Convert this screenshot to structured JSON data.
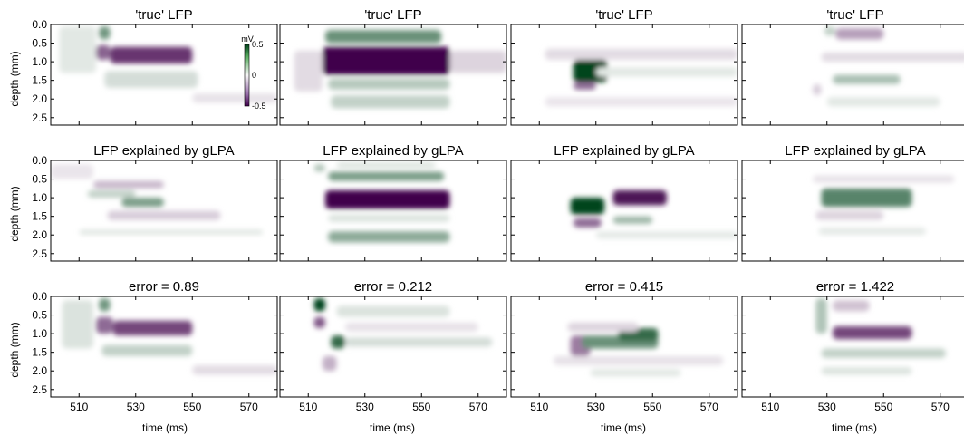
{
  "colors": {
    "positive": "#00441b",
    "negative": "#40004b",
    "neutral": "#f7f7f7",
    "frame": "#000000"
  },
  "chart_data": {
    "type": "heatmap",
    "layout": {
      "rows": 3,
      "cols": 4
    },
    "xlabel": "time (ms)",
    "ylabel": "depth (mm)",
    "xlim": [
      500,
      580
    ],
    "ylim": [
      2.7,
      0.0
    ],
    "xticks": [
      510,
      530,
      550,
      570
    ],
    "yticks": [
      0.0,
      0.5,
      1.0,
      1.5,
      2.0,
      2.5
    ],
    "xtick_labels": [
      "510",
      "530",
      "550",
      "570"
    ],
    "ytick_labels": [
      "0.0",
      "0.5",
      "1.0",
      "1.5",
      "2.0",
      "2.5"
    ],
    "colormap": "PRGn",
    "colorbar": {
      "label": "mV",
      "min": -0.5,
      "max": 0.5,
      "ticks": [
        "0.5",
        "0",
        "-0.5"
      ]
    },
    "row_titles": [
      [
        "'true' LFP",
        "'true' LFP",
        "'true' LFP",
        "'true' LFP"
      ],
      [
        "LFP explained by gLPA",
        "LFP explained by gLPA",
        "LFP explained by gLPA",
        "LFP explained by gLPA"
      ],
      [
        "error = 0.89",
        "error = 0.212",
        "error = 0.415",
        "error = 1.422"
      ]
    ],
    "errors": [
      0.89,
      0.212,
      0.415,
      1.422
    ],
    "panels": [
      [
        [
          {
            "t0": 517,
            "t1": 521,
            "d0": 0.05,
            "d1": 0.4,
            "v": 0.38
          },
          {
            "t0": 516,
            "t1": 521,
            "d0": 0.55,
            "d1": 0.95,
            "v": -0.42
          },
          {
            "t0": 521,
            "t1": 550,
            "d0": 0.6,
            "d1": 1.05,
            "v": -0.55
          },
          {
            "t0": 519,
            "t1": 552,
            "d0": 1.25,
            "d1": 1.7,
            "v": 0.1
          },
          {
            "t0": 503,
            "t1": 516,
            "d0": 0.05,
            "d1": 1.3,
            "v": 0.06
          },
          {
            "t0": 550,
            "t1": 580,
            "d0": 1.85,
            "d1": 2.1,
            "v": -0.06
          }
        ],
        [
          {
            "t0": 516,
            "t1": 557,
            "d0": 0.15,
            "d1": 0.5,
            "v": 0.4
          },
          {
            "t0": 515,
            "t1": 560,
            "d0": 0.6,
            "d1": 1.35,
            "v": -0.75
          },
          {
            "t0": 517,
            "t1": 560,
            "d0": 1.45,
            "d1": 1.75,
            "v": 0.18
          },
          {
            "t0": 518,
            "t1": 560,
            "d0": 1.9,
            "d1": 2.25,
            "v": 0.15
          },
          {
            "t0": 505,
            "t1": 515,
            "d0": 0.7,
            "d1": 1.8,
            "v": -0.08
          },
          {
            "t0": 560,
            "t1": 580,
            "d0": 0.7,
            "d1": 1.3,
            "v": -0.1
          }
        ],
        [
          {
            "t0": 522,
            "t1": 534,
            "d0": 0.95,
            "d1": 1.55,
            "v": 0.85
          },
          {
            "t0": 522,
            "t1": 530,
            "d0": 1.55,
            "d1": 1.75,
            "v": -0.4
          },
          {
            "t0": 512,
            "t1": 580,
            "d0": 0.65,
            "d1": 0.95,
            "v": -0.08
          },
          {
            "t0": 530,
            "t1": 580,
            "d0": 1.15,
            "d1": 1.4,
            "v": 0.06
          },
          {
            "t0": 512,
            "t1": 580,
            "d0": 1.95,
            "d1": 2.2,
            "v": -0.05
          }
        ],
        [
          {
            "t0": 533,
            "t1": 550,
            "d0": 0.1,
            "d1": 0.4,
            "v": -0.25
          },
          {
            "t0": 529,
            "t1": 533,
            "d0": 0.05,
            "d1": 0.3,
            "v": 0.15
          },
          {
            "t0": 532,
            "t1": 556,
            "d0": 1.35,
            "d1": 1.6,
            "v": 0.22
          },
          {
            "t0": 528,
            "t1": 580,
            "d0": 0.75,
            "d1": 1.0,
            "v": -0.08
          },
          {
            "t0": 525,
            "t1": 528,
            "d0": 1.6,
            "d1": 1.9,
            "v": -0.12
          },
          {
            "t0": 530,
            "t1": 570,
            "d0": 1.95,
            "d1": 2.2,
            "v": 0.06
          }
        ]
      ],
      [
        [
          {
            "t0": 515,
            "t1": 540,
            "d0": 0.55,
            "d1": 0.75,
            "v": -0.18
          },
          {
            "t0": 525,
            "t1": 540,
            "d0": 1.0,
            "d1": 1.25,
            "v": 0.35
          },
          {
            "t0": 513,
            "t1": 530,
            "d0": 0.8,
            "d1": 1.0,
            "v": 0.15
          },
          {
            "t0": 520,
            "t1": 560,
            "d0": 1.35,
            "d1": 1.6,
            "v": -0.12
          },
          {
            "t0": 510,
            "t1": 575,
            "d0": 1.85,
            "d1": 2.0,
            "v": 0.06
          },
          {
            "t0": 500,
            "t1": 515,
            "d0": 0.1,
            "d1": 0.5,
            "v": -0.05
          }
        ],
        [
          {
            "t0": 517,
            "t1": 558,
            "d0": 0.3,
            "d1": 0.55,
            "v": 0.35
          },
          {
            "t0": 516,
            "t1": 560,
            "d0": 0.8,
            "d1": 1.3,
            "v": -0.75
          },
          {
            "t0": 517,
            "t1": 560,
            "d0": 1.9,
            "d1": 2.2,
            "v": 0.3
          },
          {
            "t0": 517,
            "t1": 560,
            "d0": 1.45,
            "d1": 1.65,
            "v": 0.08
          },
          {
            "t0": 512,
            "t1": 516,
            "d0": 0.1,
            "d1": 0.3,
            "v": 0.2
          },
          {
            "t0": 520,
            "t1": 555,
            "d0": 0.05,
            "d1": 0.2,
            "v": 0.08
          }
        ],
        [
          {
            "t0": 521,
            "t1": 533,
            "d0": 1.0,
            "d1": 1.45,
            "v": 0.85
          },
          {
            "t0": 522,
            "t1": 532,
            "d0": 1.55,
            "d1": 1.8,
            "v": -0.4
          },
          {
            "t0": 536,
            "t1": 555,
            "d0": 0.8,
            "d1": 1.2,
            "v": -0.65
          },
          {
            "t0": 536,
            "t1": 550,
            "d0": 1.5,
            "d1": 1.7,
            "v": 0.25
          },
          {
            "t0": 530,
            "t1": 580,
            "d0": 1.9,
            "d1": 2.1,
            "v": 0.05
          }
        ],
        [
          {
            "t0": 528,
            "t1": 560,
            "d0": 0.75,
            "d1": 1.25,
            "v": 0.45
          },
          {
            "t0": 526,
            "t1": 550,
            "d0": 1.35,
            "d1": 1.6,
            "v": -0.1
          },
          {
            "t0": 525,
            "t1": 575,
            "d0": 0.4,
            "d1": 0.6,
            "v": -0.06
          },
          {
            "t0": 527,
            "t1": 565,
            "d0": 1.8,
            "d1": 2.0,
            "v": 0.05
          }
        ]
      ],
      [
        [
          {
            "t0": 517,
            "t1": 521,
            "d0": 0.05,
            "d1": 0.4,
            "v": 0.38
          },
          {
            "t0": 516,
            "t1": 522,
            "d0": 0.55,
            "d1": 1.0,
            "v": -0.4
          },
          {
            "t0": 522,
            "t1": 550,
            "d0": 0.65,
            "d1": 1.05,
            "v": -0.5
          },
          {
            "t0": 518,
            "t1": 550,
            "d0": 1.3,
            "d1": 1.6,
            "v": 0.15
          },
          {
            "t0": 504,
            "t1": 515,
            "d0": 0.1,
            "d1": 1.4,
            "v": 0.08
          },
          {
            "t0": 550,
            "t1": 580,
            "d0": 1.85,
            "d1": 2.1,
            "v": -0.08
          }
        ],
        [
          {
            "t0": 512,
            "t1": 516,
            "d0": 0.05,
            "d1": 0.4,
            "v": 0.7
          },
          {
            "t0": 512,
            "t1": 516,
            "d0": 0.55,
            "d1": 0.85,
            "v": -0.45
          },
          {
            "t0": 518,
            "t1": 523,
            "d0": 1.05,
            "d1": 1.4,
            "v": 0.55
          },
          {
            "t0": 515,
            "t1": 520,
            "d0": 1.6,
            "d1": 2.0,
            "v": -0.2
          },
          {
            "t0": 520,
            "t1": 560,
            "d0": 0.25,
            "d1": 0.55,
            "v": 0.08
          },
          {
            "t0": 523,
            "t1": 575,
            "d0": 1.1,
            "d1": 1.35,
            "v": 0.1
          },
          {
            "t0": 523,
            "t1": 570,
            "d0": 0.7,
            "d1": 0.95,
            "v": -0.06
          }
        ],
        [
          {
            "t0": 521,
            "t1": 528,
            "d0": 1.05,
            "d1": 1.6,
            "v": -0.35
          },
          {
            "t0": 525,
            "t1": 552,
            "d0": 1.05,
            "d1": 1.4,
            "v": 0.4
          },
          {
            "t0": 538,
            "t1": 552,
            "d0": 0.85,
            "d1": 1.2,
            "v": 0.55
          },
          {
            "t0": 520,
            "t1": 545,
            "d0": 0.7,
            "d1": 0.95,
            "v": -0.1
          },
          {
            "t0": 515,
            "t1": 575,
            "d0": 1.6,
            "d1": 1.85,
            "v": -0.06
          },
          {
            "t0": 528,
            "t1": 560,
            "d0": 1.95,
            "d1": 2.15,
            "v": 0.06
          }
        ],
        [
          {
            "t0": 526,
            "t1": 530,
            "d0": 0.05,
            "d1": 1.0,
            "v": 0.2
          },
          {
            "t0": 532,
            "t1": 560,
            "d0": 0.8,
            "d1": 1.15,
            "v": -0.5
          },
          {
            "t0": 532,
            "t1": 545,
            "d0": 0.1,
            "d1": 0.4,
            "v": -0.15
          },
          {
            "t0": 528,
            "t1": 572,
            "d0": 1.4,
            "d1": 1.65,
            "v": 0.15
          },
          {
            "t0": 528,
            "t1": 560,
            "d0": 1.9,
            "d1": 2.1,
            "v": 0.08
          }
        ]
      ]
    ]
  }
}
